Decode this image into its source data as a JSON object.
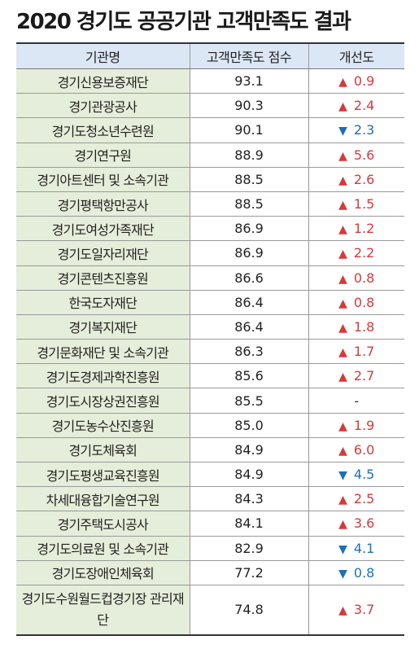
{
  "title": "2020 경기도 공공기관 고객만족도 결과",
  "headers": [
    "기관명",
    "고객만족도 점수",
    "개선도"
  ],
  "rows": [
    {
      "org": "경기신용보증재단",
      "score": "93.1",
      "dir": "up",
      "arrow": "▲",
      "change": "0.9"
    },
    {
      "org": "경기관광공사",
      "score": "90.3",
      "dir": "up",
      "arrow": "▲",
      "change": "2.4"
    },
    {
      "org": "경기도청소년수련원",
      "score": "90.1",
      "dir": "down",
      "arrow": "▼",
      "change": "2.3"
    },
    {
      "org": "경기연구원",
      "score": "88.9",
      "dir": "up",
      "arrow": "▲",
      "change": "5.6"
    },
    {
      "org": "경기아트센터 및 소속기관",
      "score": "88.5",
      "dir": "up",
      "arrow": "▲",
      "change": "2.6"
    },
    {
      "org": "경기평택항만공사",
      "score": "88.5",
      "dir": "up",
      "arrow": "▲",
      "change": "1.5"
    },
    {
      "org": "경기도여성가족재단",
      "score": "86.9",
      "dir": "up",
      "arrow": "▲",
      "change": "1.2"
    },
    {
      "org": "경기도일자리재단",
      "score": "86.9",
      "dir": "up",
      "arrow": "▲",
      "change": "2.2"
    },
    {
      "org": "경기콘텐츠진흥원",
      "score": "86.6",
      "dir": "up",
      "arrow": "▲",
      "change": "0.8"
    },
    {
      "org": "한국도자재단",
      "score": "86.4",
      "dir": "up",
      "arrow": "▲",
      "change": "0.8"
    },
    {
      "org": "경기복지재단",
      "score": "86.4",
      "dir": "up",
      "arrow": "▲",
      "change": "1.8"
    },
    {
      "org": "경기문화재단 및 소속기관",
      "score": "86.3",
      "dir": "up",
      "arrow": "▲",
      "change": "1.7"
    },
    {
      "org": "경기도경제과학진흥원",
      "score": "85.6",
      "dir": "up",
      "arrow": "▲",
      "change": "2.7"
    },
    {
      "org": "경기도시장상권진흥원",
      "score": "85.5",
      "dir": "none",
      "arrow": "",
      "change": "-"
    },
    {
      "org": "경기도농수산진흥원",
      "score": "85.0",
      "dir": "up",
      "arrow": "▲",
      "change": "1.9"
    },
    {
      "org": "경기도체육회",
      "score": "84.9",
      "dir": "up",
      "arrow": "▲",
      "change": "6.0"
    },
    {
      "org": "경기도평생교육진흥원",
      "score": "84.9",
      "dir": "down",
      "arrow": "▼",
      "change": "4.5"
    },
    {
      "org": "차세대융합기술연구원",
      "score": "84.3",
      "dir": "up",
      "arrow": "▲",
      "change": "2.5"
    },
    {
      "org": "경기주택도시공사",
      "score": "84.1",
      "dir": "up",
      "arrow": "▲",
      "change": "3.6"
    },
    {
      "org": "경기도의료원 및 소속기관",
      "score": "82.9",
      "dir": "down",
      "arrow": "▼",
      "change": "4.1"
    },
    {
      "org": "경기도장애인체육회",
      "score": "77.2",
      "dir": "down",
      "arrow": "▼",
      "change": "0.8"
    },
    {
      "org": "경기도수원월드컵경기장 관리재단",
      "score": "74.8",
      "dir": "up",
      "arrow": "▲",
      "change": "3.7"
    }
  ],
  "colors": {
    "header_bg": "#dbe7f5",
    "org_col_bg": "#e4eeda",
    "up": "#d9383a",
    "down": "#1f6fb5"
  }
}
